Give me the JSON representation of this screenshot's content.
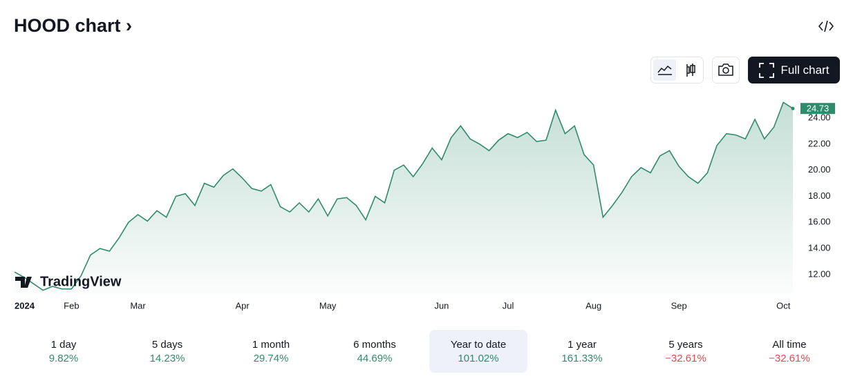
{
  "header": {
    "title": "HOOD chart",
    "button": "Full chart"
  },
  "chart_data": {
    "type": "area",
    "categories": [
      "2024",
      null,
      null,
      null,
      null,
      null,
      "Feb",
      null,
      null,
      null,
      null,
      null,
      null,
      "Mar",
      null,
      null,
      null,
      null,
      null,
      null,
      null,
      null,
      null,
      null,
      "Apr",
      null,
      null,
      null,
      null,
      null,
      null,
      null,
      null,
      "May",
      null,
      null,
      null,
      null,
      null,
      null,
      null,
      null,
      null,
      null,
      null,
      "Jun",
      null,
      null,
      null,
      null,
      null,
      null,
      "Jul",
      null,
      null,
      null,
      null,
      null,
      null,
      null,
      null,
      "Aug",
      null,
      null,
      null,
      null,
      null,
      null,
      null,
      null,
      "Sep",
      null,
      null,
      null,
      null,
      null,
      null,
      null,
      null,
      null,
      null,
      "Oct",
      null
    ],
    "values": [
      12.2,
      11.8,
      11.3,
      10.8,
      11.1,
      10.9,
      10.9,
      11.9,
      13.5,
      14.0,
      13.8,
      14.8,
      16.0,
      16.6,
      16.1,
      16.9,
      16.4,
      18.0,
      18.2,
      17.3,
      19.0,
      18.7,
      19.6,
      20.1,
      19.4,
      18.6,
      18.4,
      18.9,
      17.2,
      16.8,
      17.5,
      16.8,
      17.8,
      16.5,
      17.8,
      17.9,
      17.3,
      16.2,
      18.0,
      17.5,
      20.0,
      20.4,
      19.5,
      20.5,
      21.7,
      20.8,
      22.5,
      23.4,
      22.4,
      22.0,
      21.5,
      22.3,
      22.8,
      22.5,
      22.9,
      22.2,
      22.3,
      24.6,
      22.8,
      23.4,
      21.2,
      20.4,
      16.4,
      17.3,
      18.3,
      19.5,
      20.2,
      19.8,
      21.1,
      21.5,
      20.3,
      19.5,
      19.0,
      19.8,
      21.9,
      22.8,
      22.7,
      22.4,
      23.9,
      22.4,
      23.3,
      25.2,
      24.73
    ],
    "color": "#2e8b6c",
    "ylim": [
      10.57,
      25.64
    ],
    "yticks": [
      {
        "value": 12,
        "label": "12.00"
      },
      {
        "value": 14,
        "label": "14.00"
      },
      {
        "value": 16,
        "label": "16.00"
      },
      {
        "value": 18,
        "label": "18.00"
      },
      {
        "value": 20,
        "label": "20.00"
      },
      {
        "value": 22,
        "label": "22.00"
      },
      {
        "value": 24,
        "label": "24.00"
      }
    ],
    "watermark": "TradingView"
  },
  "periods": [
    {
      "label": "1 day",
      "change": "9.82%"
    },
    {
      "label": "5 days",
      "change": "14.23%"
    },
    {
      "label": "1 month",
      "change": "29.74%"
    },
    {
      "label": "6 months",
      "change": "44.69%"
    },
    {
      "label": "Year to date",
      "change": "101.02%",
      "selected": true
    },
    {
      "label": "1 year",
      "change": "161.33%"
    },
    {
      "label": "5 years",
      "change": "−32.61%"
    },
    {
      "label": "All time",
      "change": "−32.61%"
    }
  ]
}
